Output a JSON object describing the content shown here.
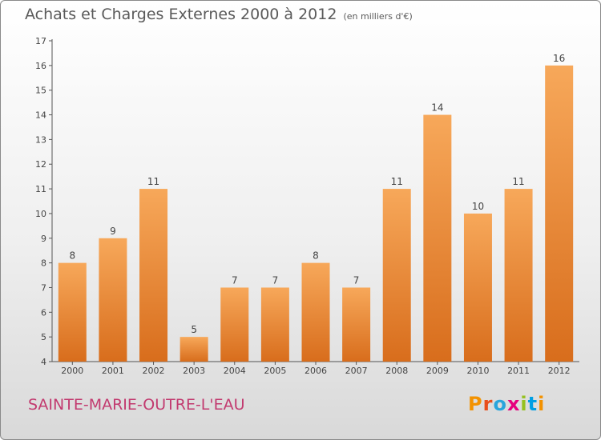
{
  "header": {
    "title": "Achats et Charges Externes 2000 à 2012",
    "unit": "(en milliers d'€)"
  },
  "footer": {
    "commune": "SAINTE-MARIE-OUTRE-L'EAU",
    "logo_text": "Proxiti"
  },
  "colors": {
    "bar_top": "#f7a85a",
    "bar_bottom": "#d86d1c",
    "logo_letters": [
      "#f39200",
      "#e94e1b",
      "#2aa5dc",
      "#e6007e",
      "#95c11f",
      "#009fe3",
      "#f39200"
    ]
  },
  "chart_data": {
    "type": "bar",
    "categories": [
      "2000",
      "2001",
      "2002",
      "2003",
      "2004",
      "2005",
      "2006",
      "2007",
      "2008",
      "2009",
      "2010",
      "2011",
      "2012"
    ],
    "values": [
      8,
      9,
      11,
      5,
      7,
      7,
      8,
      7,
      11,
      14,
      10,
      11,
      16
    ],
    "title": "Achats et Charges Externes 2000 à 2012",
    "ylim": [
      4,
      17
    ],
    "yticks": [
      4,
      5,
      6,
      7,
      8,
      9,
      10,
      11,
      12,
      13,
      14,
      15,
      16,
      17
    ],
    "grid": false,
    "data_labels": true
  }
}
